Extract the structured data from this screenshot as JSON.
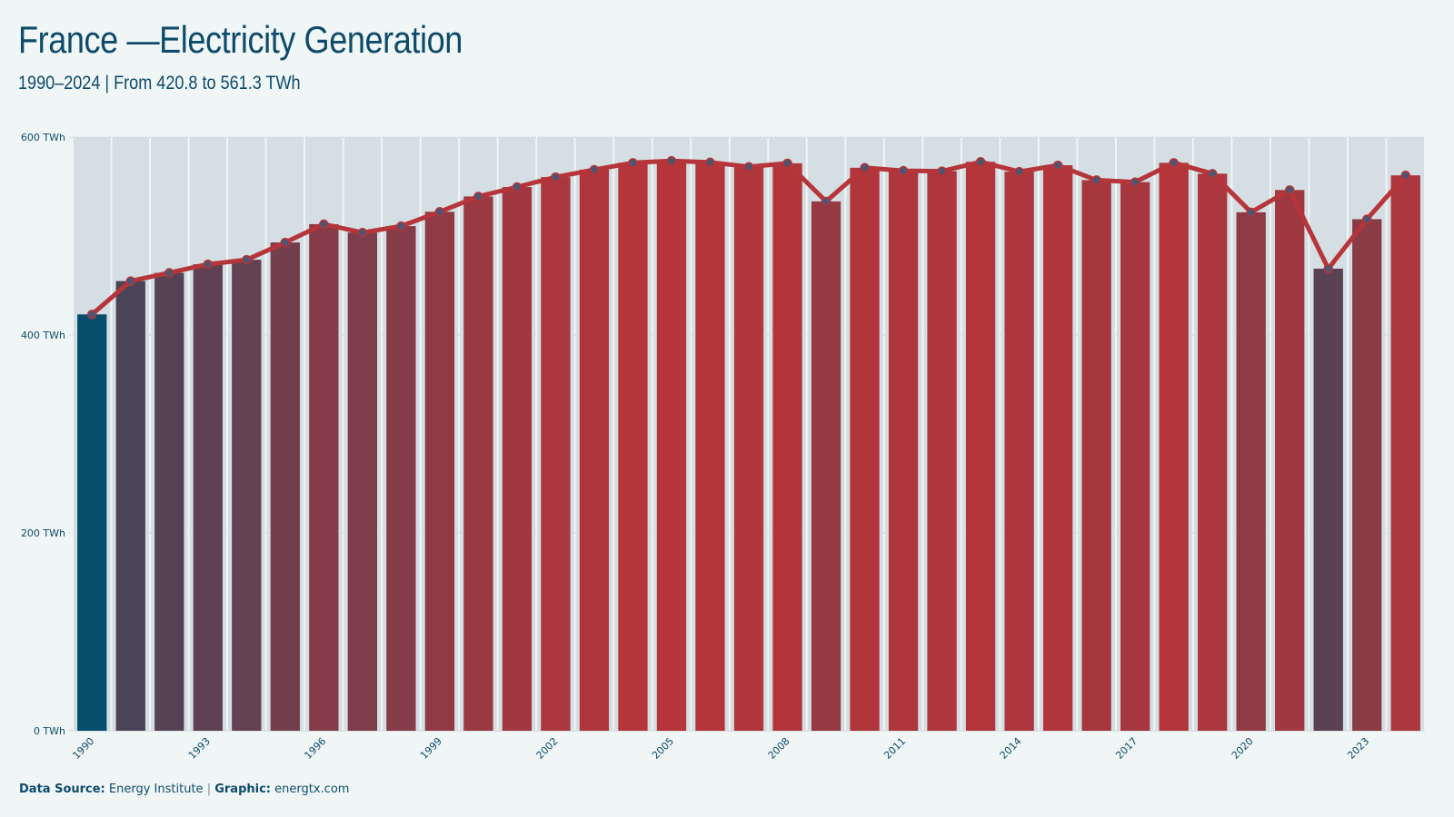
{
  "header": {
    "title": "France —Electricity Generation",
    "subtitle": "1990–2024 | From 420.8 to 561.3 TWh"
  },
  "footer": {
    "source_label": "Data Source:",
    "source_value": "Energy Institute",
    "separator": "|",
    "graphic_label": "Graphic:",
    "graphic_value": "energtx.com"
  },
  "colors": {
    "low": "#054e6c",
    "high": "#b5353a",
    "line": "#b5353a",
    "marker": "#4f5570",
    "bar_background": "#d5dee2",
    "grid": "#c9d0d4",
    "text": "#0d4a6b"
  },
  "chart_data": {
    "type": "bar",
    "overlay": "line",
    "categories": [
      "1990",
      "1991",
      "1992",
      "1993",
      "1994",
      "1995",
      "1996",
      "1997",
      "1998",
      "1999",
      "2000",
      "2001",
      "2002",
      "2003",
      "2004",
      "2005",
      "2006",
      "2007",
      "2008",
      "2009",
      "2010",
      "2011",
      "2012",
      "2013",
      "2014",
      "2015",
      "2016",
      "2017",
      "2018",
      "2019",
      "2020",
      "2021",
      "2022",
      "2023",
      "2024"
    ],
    "values": [
      420.8,
      454.5,
      462.8,
      471.5,
      476.0,
      493.5,
      512.0,
      503.5,
      510.0,
      524.5,
      540.0,
      549.5,
      559.5,
      567.0,
      574.0,
      576.0,
      574.5,
      570.0,
      573.5,
      535.0,
      569.0,
      566.0,
      565.5,
      575.0,
      565.0,
      571.5,
      556.5,
      554.5,
      574.0,
      563.0,
      524.0,
      546.5,
      467.0,
      517.0,
      561.3
    ],
    "x_tick_labels": [
      "1990",
      "1993",
      "1996",
      "1999",
      "2002",
      "2005",
      "2008",
      "2011",
      "2014",
      "2017",
      "2020",
      "2023"
    ],
    "y_ticks": [
      {
        "value": 0,
        "label": "0 TWh"
      },
      {
        "value": 200,
        "label": "200 TWh"
      },
      {
        "value": 400,
        "label": "400 TWh"
      },
      {
        "value": 600,
        "label": "600 TWh"
      }
    ],
    "ylim": [
      0,
      600
    ],
    "grid": true,
    "legend": "none"
  }
}
